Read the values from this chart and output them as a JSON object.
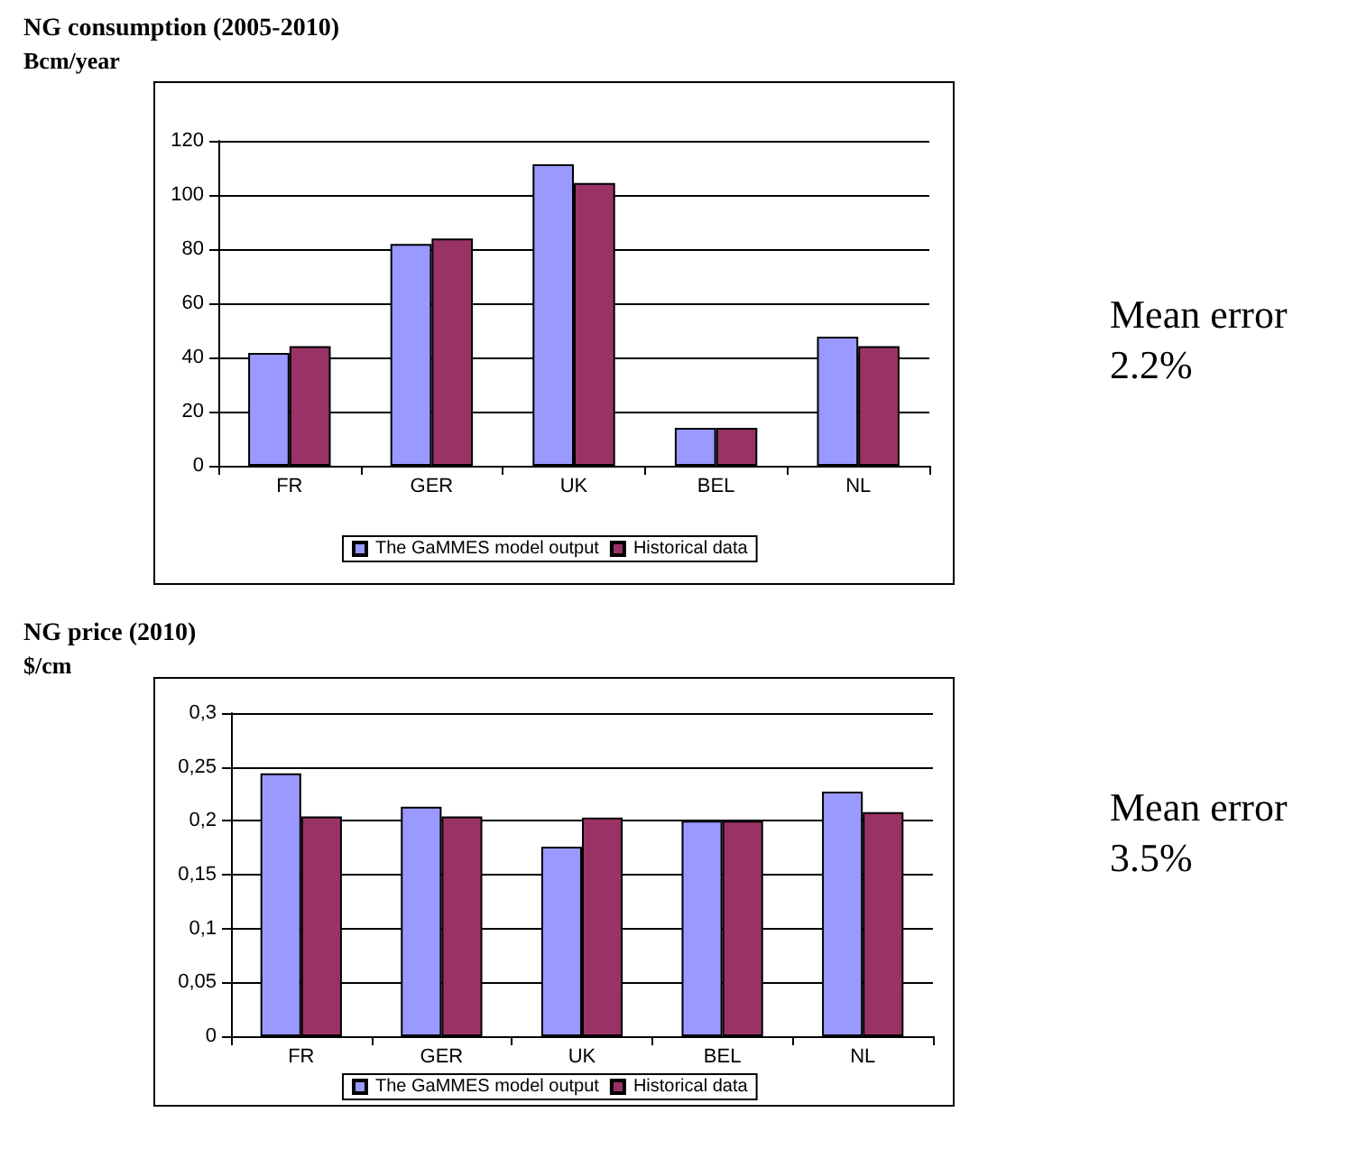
{
  "chart_data": [
    {
      "type": "bar",
      "title": "NG consumption (2005-2010)",
      "subtitle": "Bcm/year",
      "categories": [
        "FR",
        "GER",
        "UK",
        "BEL",
        "NL"
      ],
      "series": [
        {
          "name": "The GaMMES model output",
          "color": "#9999ff",
          "values": [
            41.7,
            81.9,
            111.3,
            14,
            47.7
          ]
        },
        {
          "name": "Historical data",
          "color": "#993366",
          "values": [
            44.2,
            83.9,
            104.4,
            14,
            44.2
          ]
        }
      ],
      "ylim": [
        0,
        120
      ],
      "yticks": [
        0,
        20,
        40,
        60,
        80,
        100,
        120
      ],
      "grid": "y",
      "legend": "bottom",
      "annotations": [
        "Mean error 2.2%"
      ]
    },
    {
      "type": "bar",
      "title": "NG price (2010)",
      "subtitle": "$/cm",
      "categories": [
        "FR",
        "GER",
        "UK",
        "BEL",
        "NL"
      ],
      "series": [
        {
          "name": "The GaMMES model output",
          "color": "#9999ff",
          "values": [
            0.244,
            0.213,
            0.176,
            0.2,
            0.227
          ]
        },
        {
          "name": "Historical data",
          "color": "#993366",
          "values": [
            0.204,
            0.204,
            0.203,
            0.2,
            0.208
          ]
        }
      ],
      "ylim": [
        0,
        0.3
      ],
      "yticks": [
        {
          "value": 0,
          "label": "0"
        },
        {
          "value": 0.05,
          "label": "0,05"
        },
        {
          "value": 0.1,
          "label": "0,1"
        },
        {
          "value": 0.15,
          "label": "0,15"
        },
        {
          "value": 0.2,
          "label": "0,2"
        },
        {
          "value": 0.25,
          "label": "0,25"
        },
        {
          "value": 0.3,
          "label": "0,3"
        }
      ],
      "grid": "y",
      "legend": "bottom",
      "annotations": [
        "Mean error 3.5%"
      ]
    }
  ]
}
